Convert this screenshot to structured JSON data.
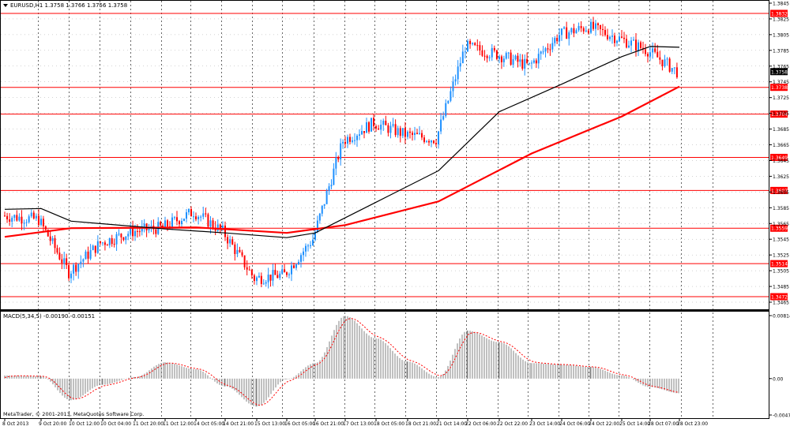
{
  "colors": {
    "background": "#ffffff",
    "grid": "#000000",
    "bull_candle": "#1e90ff",
    "bear_candle": "#ff0000",
    "sma_fast": "#000000",
    "sma_slow": "#ff0000",
    "sr_line": "#ff0000",
    "macd_hist": "#808080",
    "macd_signal": "#ff0000",
    "price_tag_bg": "#000000",
    "level_tag_bg": "#ff0000"
  },
  "header": {
    "menu_icon": "triangle-down-icon",
    "quote": "EURUSD,H1  1.3758 1.3766 1.3756 1.3758"
  },
  "price_scale": [
    "1.3845",
    "1.3825",
    "1.3805",
    "1.3785",
    "1.3765",
    "1.3745",
    "1.3725",
    "1.3705",
    "1.3685",
    "1.3665",
    "1.3645",
    "1.3625",
    "1.3605",
    "1.3585",
    "1.3565",
    "1.3545",
    "1.3525",
    "1.3505",
    "1.3485",
    "1.3465"
  ],
  "current_price": "1.3758",
  "levels": [
    "1.3832",
    "1.3738",
    "1.3704",
    "1.3649",
    "1.3607",
    "1.3559",
    "1.3514",
    "1.3472"
  ],
  "macd": {
    "label": "MACD(5,34,5) -0.00190 -0.00151",
    "scale": [
      "0.00814",
      "0.00",
      "-0.00471"
    ]
  },
  "copyright": "MetaTrader, © 2001-2013, MetaQuotes Software Corp.",
  "time_axis": [
    "8 Oct 2013",
    "9 Oct 20:00",
    "10 Oct 12:00",
    "10 Oct 04:00",
    "11 Oct 20:00",
    "11 Oct 12:00",
    "14 Oct 05:00",
    "14 Oct 21:00",
    "15 Oct 13:00",
    "16 Oct 05:00",
    "16 Oct 21:00",
    "17 Oct 13:00",
    "18 Oct 05:00",
    "18 Oct 21:00",
    "21 Oct 14:00",
    "22 Oct 06:00",
    "22 Oct 22:00",
    "23 Oct 14:00",
    "24 Oct 06:00",
    "24 Oct 22:00",
    "25 Oct 14:00",
    "28 Oct 07:00",
    "28 Oct 23:00"
  ],
  "chart_data": {
    "type": "candlestick",
    "symbol": "EURUSD",
    "timeframe": "H1",
    "ylim": [
      1.3465,
      1.3845
    ],
    "price_path": [
      {
        "x": "8 Oct 2013",
        "y": 1.3575
      },
      {
        "x": "9 Oct 20:00",
        "y": 1.357
      },
      {
        "x": "10 Oct 12:00",
        "y": 1.3503
      },
      {
        "x": "10 Oct 04:00",
        "y": 1.354
      },
      {
        "x": "11 Oct 20:00",
        "y": 1.3555
      },
      {
        "x": "11 Oct 12:00",
        "y": 1.356
      },
      {
        "x": "14 Oct 05:00",
        "y": 1.358
      },
      {
        "x": "14 Oct 21:00",
        "y": 1.3555
      },
      {
        "x": "15 Oct 13:00",
        "y": 1.3495
      },
      {
        "x": "16 Oct 05:00",
        "y": 1.35
      },
      {
        "x": "16 Oct 21:00",
        "y": 1.3545
      },
      {
        "x": "17 Oct 13:00",
        "y": 1.367
      },
      {
        "x": "18 Oct 05:00",
        "y": 1.3693
      },
      {
        "x": "18 Oct 21:00",
        "y": 1.3678
      },
      {
        "x": "21 Oct 14:00",
        "y": 1.3672
      },
      {
        "x": "22 Oct 06:00",
        "y": 1.379
      },
      {
        "x": "22 Oct 22:00",
        "y": 1.378
      },
      {
        "x": "23 Oct 14:00",
        "y": 1.3765
      },
      {
        "x": "24 Oct 06:00",
        "y": 1.3805
      },
      {
        "x": "24 Oct 22:00",
        "y": 1.3815
      },
      {
        "x": "25 Oct 14:00",
        "y": 1.38
      },
      {
        "x": "28 Oct 07:00",
        "y": 1.3785
      },
      {
        "x": "28 Oct 23:00",
        "y": 1.3758
      }
    ],
    "sma_fast": [
      {
        "x": "8 Oct 2013",
        "y": 1.3583
      },
      {
        "x": "9 Oct 20:00",
        "y": 1.3584
      },
      {
        "x": "10 Oct 12:00",
        "y": 1.3568
      },
      {
        "x": "11 Oct 12:00",
        "y": 1.3558
      },
      {
        "x": "14 Oct 21:00",
        "y": 1.3553
      },
      {
        "x": "16 Oct 05:00",
        "y": 1.3547
      },
      {
        "x": "16 Oct 21:00",
        "y": 1.3553
      },
      {
        "x": "18 Oct 05:00",
        "y": 1.3592
      },
      {
        "x": "21 Oct 14:00",
        "y": 1.3632
      },
      {
        "x": "22 Oct 22:00",
        "y": 1.3707
      },
      {
        "x": "24 Oct 06:00",
        "y": 1.3742
      },
      {
        "x": "25 Oct 14:00",
        "y": 1.3777
      },
      {
        "x": "28 Oct 07:00",
        "y": 1.379
      },
      {
        "x": "28 Oct 23:00",
        "y": 1.3789
      }
    ],
    "sma_slow": [
      {
        "x": "8 Oct 2013",
        "y": 1.3548
      },
      {
        "x": "10 Oct 12:00",
        "y": 1.3559
      },
      {
        "x": "14 Oct 05:00",
        "y": 1.356
      },
      {
        "x": "16 Oct 05:00",
        "y": 1.3553
      },
      {
        "x": "17 Oct 13:00",
        "y": 1.3563
      },
      {
        "x": "21 Oct 14:00",
        "y": 1.3593
      },
      {
        "x": "23 Oct 14:00",
        "y": 1.3654
      },
      {
        "x": "25 Oct 14:00",
        "y": 1.3701
      },
      {
        "x": "28 Oct 23:00",
        "y": 1.3739
      }
    ],
    "macd_ylim": [
      -0.00471,
      0.00814
    ],
    "macd_histogram": [
      {
        "x": "8 Oct 2013",
        "y": 0.0004
      },
      {
        "x": "9 Oct 20:00",
        "y": 0.0003
      },
      {
        "x": "10 Oct 12:00",
        "y": -0.0028
      },
      {
        "x": "10 Oct 04:00",
        "y": -0.0008
      },
      {
        "x": "11 Oct 20:00",
        "y": 0.0002
      },
      {
        "x": "11 Oct 12:00",
        "y": 0.0021
      },
      {
        "x": "14 Oct 05:00",
        "y": 0.0012
      },
      {
        "x": "14 Oct 21:00",
        "y": -0.001
      },
      {
        "x": "15 Oct 13:00",
        "y": -0.0036
      },
      {
        "x": "16 Oct 05:00",
        "y": -0.0001
      },
      {
        "x": "16 Oct 21:00",
        "y": 0.002
      },
      {
        "x": "17 Oct 13:00",
        "y": 0.0081
      },
      {
        "x": "18 Oct 05:00",
        "y": 0.0052
      },
      {
        "x": "18 Oct 21:00",
        "y": 0.0022
      },
      {
        "x": "21 Oct 14:00",
        "y": 0.0002
      },
      {
        "x": "22 Oct 06:00",
        "y": 0.0062
      },
      {
        "x": "22 Oct 22:00",
        "y": 0.0047
      },
      {
        "x": "23 Oct 14:00",
        "y": 0.002
      },
      {
        "x": "24 Oct 06:00",
        "y": 0.0018
      },
      {
        "x": "24 Oct 22:00",
        "y": 0.0015
      },
      {
        "x": "25 Oct 14:00",
        "y": 0.0004
      },
      {
        "x": "28 Oct 07:00",
        "y": -0.0011
      },
      {
        "x": "28 Oct 23:00",
        "y": -0.0019
      }
    ]
  }
}
